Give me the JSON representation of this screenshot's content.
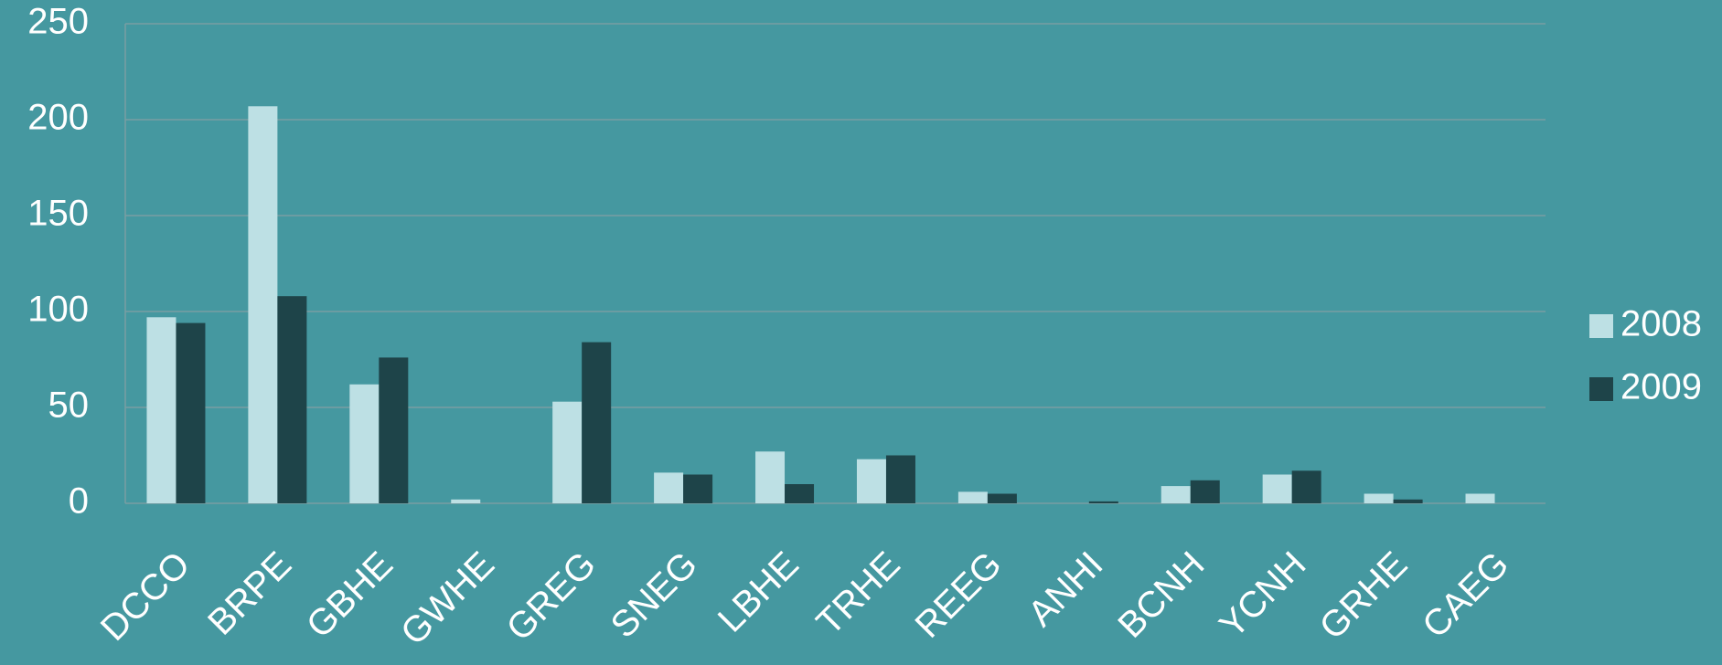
{
  "chart_data": {
    "type": "bar",
    "categories": [
      "DCCO",
      "BRPE",
      "GBHE",
      "GWHE",
      "GREG",
      "SNEG",
      "LBHE",
      "TRHE",
      "REEG",
      "ANHI",
      "BCNH",
      "YCNH",
      "GRHE",
      "CAEG"
    ],
    "series": [
      {
        "name": "2008",
        "color": "#bde0e4",
        "values": [
          97,
          207,
          62,
          2,
          53,
          16,
          27,
          23,
          6,
          0,
          9,
          15,
          5,
          5
        ]
      },
      {
        "name": "2009",
        "color": "#1e4449",
        "values": [
          94,
          108,
          76,
          0,
          84,
          15,
          10,
          25,
          5,
          1,
          12,
          17,
          2,
          0
        ]
      }
    ],
    "ylim": [
      0,
      250
    ],
    "yticks": [
      0,
      50,
      100,
      150,
      200,
      250
    ],
    "grid": true,
    "legend": "right"
  }
}
